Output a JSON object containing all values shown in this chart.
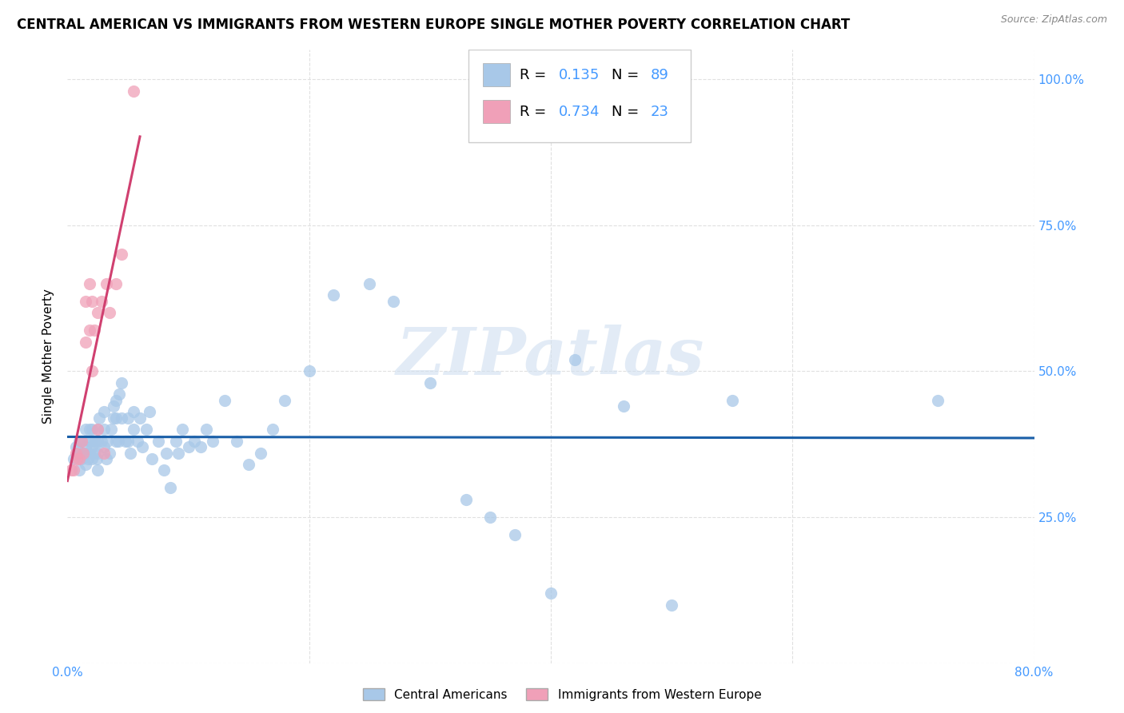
{
  "title": "CENTRAL AMERICAN VS IMMIGRANTS FROM WESTERN EUROPE SINGLE MOTHER POVERTY CORRELATION CHART",
  "source": "Source: ZipAtlas.com",
  "ylabel": "Single Mother Poverty",
  "xlim": [
    0.0,
    0.8
  ],
  "ylim": [
    0.0,
    1.05
  ],
  "watermark": "ZIPatlas",
  "blue_color": "#a8c8e8",
  "pink_color": "#f0a0b8",
  "blue_line_color": "#1a5fa8",
  "pink_line_color": "#d04070",
  "blue_R": 0.135,
  "pink_R": 0.734,
  "blue_N": 89,
  "pink_N": 23,
  "legend_label_blue": "Central Americans",
  "legend_label_pink": "Immigrants from Western Europe",
  "blue_points_x": [
    0.005,
    0.007,
    0.008,
    0.01,
    0.01,
    0.012,
    0.012,
    0.013,
    0.015,
    0.015,
    0.015,
    0.015,
    0.017,
    0.018,
    0.018,
    0.018,
    0.02,
    0.02,
    0.02,
    0.02,
    0.022,
    0.023,
    0.024,
    0.025,
    0.025,
    0.025,
    0.025,
    0.026,
    0.028,
    0.03,
    0.03,
    0.03,
    0.032,
    0.033,
    0.035,
    0.036,
    0.038,
    0.038,
    0.04,
    0.04,
    0.04,
    0.042,
    0.043,
    0.045,
    0.045,
    0.048,
    0.05,
    0.05,
    0.052,
    0.055,
    0.055,
    0.058,
    0.06,
    0.062,
    0.065,
    0.068,
    0.07,
    0.075,
    0.08,
    0.082,
    0.085,
    0.09,
    0.092,
    0.095,
    0.1,
    0.105,
    0.11,
    0.115,
    0.12,
    0.13,
    0.14,
    0.15,
    0.16,
    0.17,
    0.18,
    0.2,
    0.22,
    0.25,
    0.27,
    0.3,
    0.33,
    0.35,
    0.37,
    0.4,
    0.42,
    0.46,
    0.5,
    0.55,
    0.72
  ],
  "blue_points_y": [
    0.35,
    0.37,
    0.36,
    0.33,
    0.38,
    0.35,
    0.38,
    0.36,
    0.34,
    0.36,
    0.37,
    0.4,
    0.35,
    0.36,
    0.38,
    0.4,
    0.35,
    0.37,
    0.38,
    0.4,
    0.36,
    0.38,
    0.35,
    0.33,
    0.36,
    0.38,
    0.4,
    0.42,
    0.38,
    0.37,
    0.4,
    0.43,
    0.35,
    0.38,
    0.36,
    0.4,
    0.42,
    0.44,
    0.38,
    0.42,
    0.45,
    0.38,
    0.46,
    0.42,
    0.48,
    0.38,
    0.38,
    0.42,
    0.36,
    0.4,
    0.43,
    0.38,
    0.42,
    0.37,
    0.4,
    0.43,
    0.35,
    0.38,
    0.33,
    0.36,
    0.3,
    0.38,
    0.36,
    0.4,
    0.37,
    0.38,
    0.37,
    0.4,
    0.38,
    0.45,
    0.38,
    0.34,
    0.36,
    0.4,
    0.45,
    0.5,
    0.63,
    0.65,
    0.62,
    0.48,
    0.28,
    0.25,
    0.22,
    0.12,
    0.52,
    0.44,
    0.1,
    0.45,
    0.45
  ],
  "pink_points_x": [
    0.003,
    0.005,
    0.007,
    0.008,
    0.01,
    0.012,
    0.013,
    0.015,
    0.015,
    0.018,
    0.018,
    0.02,
    0.02,
    0.022,
    0.025,
    0.025,
    0.028,
    0.03,
    0.032,
    0.035,
    0.04,
    0.045,
    0.055
  ],
  "pink_points_y": [
    0.33,
    0.33,
    0.36,
    0.35,
    0.35,
    0.38,
    0.36,
    0.55,
    0.62,
    0.57,
    0.65,
    0.5,
    0.62,
    0.57,
    0.4,
    0.6,
    0.62,
    0.36,
    0.65,
    0.6,
    0.65,
    0.7,
    0.98
  ],
  "ytick_positions": [
    0.0,
    0.25,
    0.5,
    0.75,
    1.0
  ],
  "ytick_labels": [
    "",
    "25.0%",
    "50.0%",
    "75.0%",
    "100.0%"
  ],
  "xtick_positions": [
    0.0,
    0.2,
    0.4,
    0.6,
    0.8
  ],
  "xtick_labels": [
    "0.0%",
    "",
    "",
    "",
    "80.0%"
  ],
  "tick_color": "#4499ff",
  "grid_color": "#e0e0e0",
  "title_fontsize": 12,
  "axis_label_fontsize": 11,
  "tick_fontsize": 11
}
